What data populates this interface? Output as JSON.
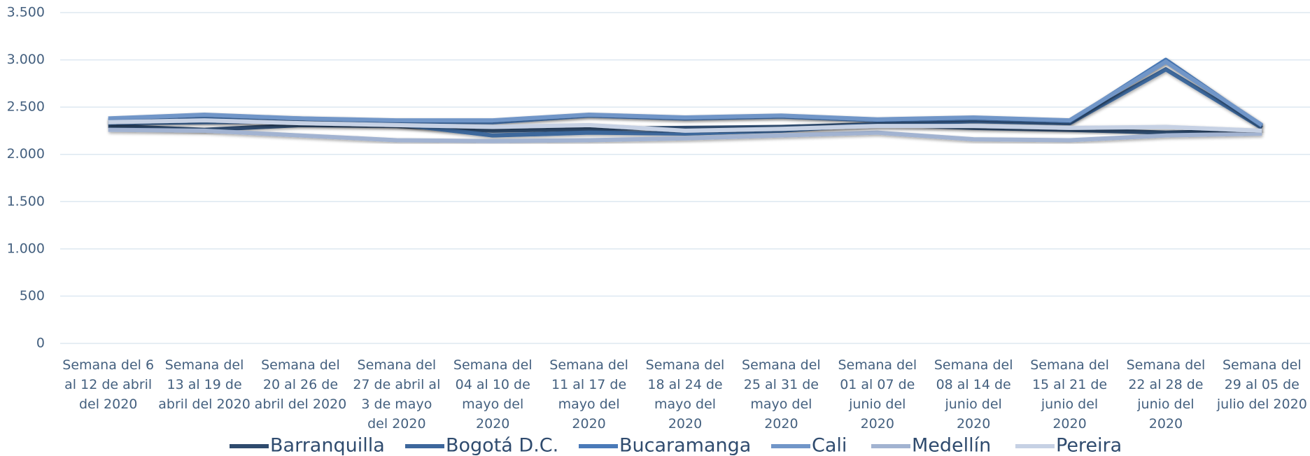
{
  "chart_data": {
    "type": "line",
    "categories": [
      "Semana del 6 al 12 de abril del 2020",
      "Semana del 13 al 19 de abril del 2020",
      "Semana del 20 al 26 de abril del 2020",
      "Semana del 27 de abril al 3 de mayo del 2020",
      "Semana del 04 al 10 de mayo del 2020",
      "Semana del 11 al 17 de mayo del 2020",
      "Semana del 18 al 24 de mayo del 2020",
      "Semana del 25 al 31 de mayo del 2020",
      "Semana del 01 al 07 de junio del 2020",
      "Semana del 08 al 14 de junio del 2020",
      "Semana del 15 al 21 de junio del 2020",
      "Semana del 22 al 28 de junio del 2020",
      "Semana del 29 al 05 de julio del 2020"
    ],
    "series": [
      {
        "name": "Barranquilla",
        "color": "#2f4b6e",
        "values": [
          2300,
          2260,
          2310,
          2300,
          2250,
          2270,
          2280,
          2290,
          2320,
          2280,
          2260,
          2230,
          2250
        ]
      },
      {
        "name": "Bogotá D.C.",
        "color": "#3d679c",
        "values": [
          2330,
          2340,
          2350,
          2320,
          2200,
          2230,
          2220,
          2250,
          2320,
          2350,
          2330,
          2900,
          2280
        ]
      },
      {
        "name": "Bucaramanga",
        "color": "#4a7ab8",
        "values": [
          2360,
          2400,
          2380,
          2350,
          2340,
          2410,
          2380,
          2400,
          2360,
          2380,
          2350,
          3000,
          2300
        ]
      },
      {
        "name": "Cali",
        "color": "#7196c8",
        "values": [
          2380,
          2420,
          2380,
          2360,
          2360,
          2420,
          2390,
          2410,
          2370,
          2390,
          2360,
          2980,
          2310
        ]
      },
      {
        "name": "Medellín",
        "color": "#a2b3d1",
        "values": [
          2260,
          2250,
          2200,
          2150,
          2140,
          2150,
          2170,
          2200,
          2230,
          2160,
          2150,
          2200,
          2220
        ]
      },
      {
        "name": "Pereira",
        "color": "#c6d1e4",
        "values": [
          2340,
          2360,
          2330,
          2310,
          2290,
          2310,
          2250,
          2270,
          2300,
          2300,
          2280,
          2290,
          2250
        ]
      }
    ],
    "ylim": [
      0,
      3500
    ],
    "yticks": [
      0,
      500,
      {
        "value": 1000,
        "label": "1.000"
      },
      {
        "value": 1500,
        "label": "1.500"
      },
      {
        "value": 2000,
        "label": "2.000"
      },
      {
        "value": 2500,
        "label": "2.500"
      },
      {
        "value": 3000,
        "label": "3.000"
      },
      {
        "value": 3500,
        "label": "3.500"
      }
    ],
    "grid": true
  }
}
